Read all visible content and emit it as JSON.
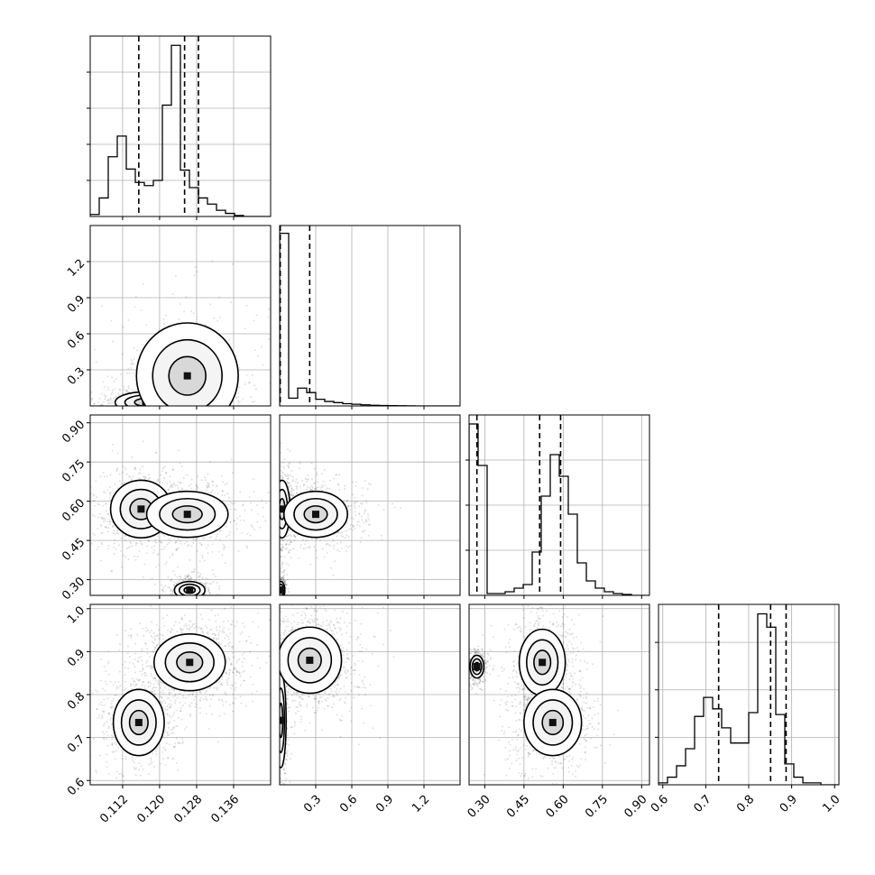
{
  "chart_data": {
    "type": "corner",
    "grid": true,
    "params": [
      {
        "range": [
          0.105,
          0.144
        ],
        "ticks": [
          0.112,
          0.12,
          0.128,
          0.136
        ],
        "tick_labels": [
          "0.112",
          "0.120",
          "0.128",
          "0.136"
        ],
        "hist_edges_start": 0.105,
        "hist_bin_width": 0.00195,
        "hist": [
          0.02,
          0.18,
          0.58,
          0.78,
          0.46,
          0.33,
          0.3,
          0.35,
          1.08,
          1.66,
          0.45,
          0.28,
          0.18,
          0.12,
          0.06,
          0.03,
          0.01,
          0.0,
          0.0,
          0.0
        ],
        "quantiles": [
          0.1155,
          0.1254,
          0.1284
        ],
        "hist_ylim": [
          0,
          1.75
        ],
        "hist_yticks": [
          0.35,
          0.7,
          1.05,
          1.4
        ]
      },
      {
        "range": [
          0.0,
          1.5
        ],
        "ticks": [
          0.3,
          0.6,
          0.9,
          1.2
        ],
        "tick_labels": [
          "0.3",
          "0.6",
          "0.9",
          "1.2"
        ],
        "hist_edges_start": 0.0,
        "hist_bin_width": 0.075,
        "hist": [
          1.55,
          0.07,
          0.16,
          0.12,
          0.06,
          0.04,
          0.03,
          0.02,
          0.015,
          0.01,
          0.006,
          0.004,
          0.003,
          0.002,
          0.001,
          0.0,
          0.0,
          0.0,
          0.0,
          0.0
        ],
        "quantiles": [
          0.005,
          0.25
        ],
        "hist_ylim": [
          0,
          1.62
        ],
        "hist_yticks": []
      },
      {
        "range": [
          0.24,
          0.93
        ],
        "ticks": [
          0.3,
          0.45,
          0.6,
          0.75,
          0.9
        ],
        "tick_labels": [
          "0.30",
          "0.45",
          "0.60",
          "0.75",
          "0.90"
        ],
        "hist_edges_start": 0.24,
        "hist_bin_width": 0.0345,
        "hist": [
          0.95,
          0.72,
          0.01,
          0.01,
          0.02,
          0.04,
          0.06,
          0.24,
          0.55,
          0.78,
          0.66,
          0.45,
          0.18,
          0.08,
          0.04,
          0.02,
          0.01,
          0.005,
          0.0,
          0.0
        ],
        "quantiles": [
          0.27,
          0.51,
          0.59
        ],
        "hist_ylim": [
          0,
          1.0
        ],
        "hist_yticks": [
          0.25,
          0.5,
          0.75
        ]
      },
      {
        "range": [
          0.59,
          1.01
        ],
        "ticks": [
          0.6,
          0.7,
          0.8,
          0.9,
          1.0
        ],
        "tick_labels": [
          "0.6",
          "0.7",
          "0.8",
          "0.9",
          "1.0"
        ],
        "hist_edges_start": 0.59,
        "hist_bin_width": 0.021,
        "hist": [
          0.01,
          0.04,
          0.1,
          0.19,
          0.36,
          0.46,
          0.4,
          0.3,
          0.22,
          0.22,
          0.38,
          0.9,
          0.83,
          0.37,
          0.11,
          0.04,
          0.01,
          0.01,
          0.0,
          0.0
        ],
        "quantiles": [
          0.73,
          0.851,
          0.887
        ],
        "hist_ylim": [
          0,
          0.95
        ],
        "hist_yticks": [
          0.25,
          0.5,
          0.75
        ]
      }
    ],
    "density_blobs": [
      {
        "row": 1,
        "col": 0,
        "modes": [
          {
            "x": 0.117,
            "y": 0.03,
            "sx": 0.003,
            "sy": 0.04,
            "w": 0.35
          },
          {
            "x": 0.127,
            "y": 0.05,
            "sx": 0.0025,
            "sy": 0.05,
            "w": 0.45
          },
          {
            "x": 0.126,
            "y": 0.25,
            "sx": 0.005,
            "sy": 0.2,
            "w": 0.2
          }
        ]
      },
      {
        "row": 2,
        "col": 0,
        "modes": [
          {
            "x": 0.116,
            "y": 0.57,
            "sx": 0.003,
            "sy": 0.05,
            "w": 0.35
          },
          {
            "x": 0.126,
            "y": 0.55,
            "sx": 0.004,
            "sy": 0.04,
            "w": 0.4
          },
          {
            "x": 0.1265,
            "y": 0.26,
            "sx": 0.0015,
            "sy": 0.015,
            "w": 0.25
          }
        ]
      },
      {
        "row": 2,
        "col": 1,
        "modes": [
          {
            "x": 0.02,
            "y": 0.57,
            "sx": 0.03,
            "sy": 0.05,
            "w": 0.3
          },
          {
            "x": 0.3,
            "y": 0.55,
            "sx": 0.12,
            "sy": 0.04,
            "w": 0.45
          },
          {
            "x": 0.01,
            "y": 0.26,
            "sx": 0.015,
            "sy": 0.015,
            "w": 0.25
          }
        ]
      },
      {
        "row": 3,
        "col": 0,
        "modes": [
          {
            "x": 0.1155,
            "y": 0.735,
            "sx": 0.0025,
            "sy": 0.035,
            "w": 0.4
          },
          {
            "x": 0.1265,
            "y": 0.875,
            "sx": 0.0035,
            "sy": 0.03,
            "w": 0.6
          }
        ]
      },
      {
        "row": 3,
        "col": 1,
        "modes": [
          {
            "x": 0.01,
            "y": 0.74,
            "sx": 0.02,
            "sy": 0.05,
            "w": 0.3
          },
          {
            "x": 0.25,
            "y": 0.88,
            "sx": 0.12,
            "sy": 0.035,
            "w": 0.7
          }
        ]
      },
      {
        "row": 3,
        "col": 2,
        "modes": [
          {
            "x": 0.27,
            "y": 0.865,
            "sx": 0.012,
            "sy": 0.012,
            "w": 0.25
          },
          {
            "x": 0.52,
            "y": 0.875,
            "sx": 0.04,
            "sy": 0.035,
            "w": 0.35
          },
          {
            "x": 0.56,
            "y": 0.735,
            "sx": 0.05,
            "sy": 0.035,
            "w": 0.4
          }
        ]
      }
    ]
  }
}
